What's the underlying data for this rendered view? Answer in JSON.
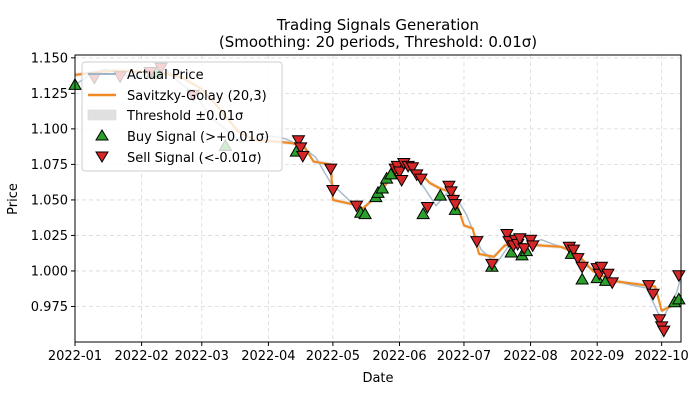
{
  "chart_data": {
    "type": "line",
    "title": "Trading Signals Generation",
    "subtitle": "(Smoothing: 20 periods, Threshold: 0.01σ)",
    "xlabel": "Date",
    "ylabel": "Price",
    "xlim": [
      "2022-01-01",
      "2022-10-10"
    ],
    "ylim": [
      0.95,
      1.152
    ],
    "grid": true,
    "legend_position": "upper-left",
    "x_ticks": [
      "2022-01",
      "2022-02",
      "2022-03",
      "2022-04",
      "2022-05",
      "2022-06",
      "2022-07",
      "2022-08",
      "2022-09",
      "2022-10"
    ],
    "y_ticks": [
      "0.975",
      "1.000",
      "1.025",
      "1.050",
      "1.075",
      "1.100",
      "1.125",
      "1.150"
    ],
    "legend": {
      "actual": "Actual Price",
      "smooth": "Savitzky-Golay (20,3)",
      "threshold": "Threshold ±0.01σ",
      "buy": "Buy Signal (>+0.01σ)",
      "sell": "Sell Signal (<-0.01σ)"
    },
    "colors": {
      "actual": "#9fb6c9",
      "smooth": "#f08a24",
      "threshold": "#e0e0e0",
      "buy": "#2ca02c",
      "sell": "#d62728"
    },
    "series": [
      {
        "name": "Actual Price",
        "points": [
          [
            "2022-01-01",
            1.131
          ],
          [
            "2022-01-08",
            1.138
          ],
          [
            "2022-01-15",
            1.142
          ],
          [
            "2022-01-22",
            1.139
          ],
          [
            "2022-01-29",
            1.135
          ],
          [
            "2022-02-05",
            1.14
          ],
          [
            "2022-02-12",
            1.142
          ],
          [
            "2022-02-19",
            1.132
          ],
          [
            "2022-02-26",
            1.125
          ],
          [
            "2022-03-05",
            1.108
          ],
          [
            "2022-03-12",
            1.1
          ],
          [
            "2022-03-19",
            1.091
          ],
          [
            "2022-03-26",
            1.092
          ],
          [
            "2022-04-02",
            1.095
          ],
          [
            "2022-04-09",
            1.093
          ],
          [
            "2022-04-16",
            1.088
          ],
          [
            "2022-04-23",
            1.08
          ],
          [
            "2022-04-30",
            1.062
          ],
          [
            "2022-05-07",
            1.052
          ],
          [
            "2022-05-14",
            1.042
          ],
          [
            "2022-05-21",
            1.052
          ],
          [
            "2022-05-28",
            1.068
          ],
          [
            "2022-06-04",
            1.074
          ],
          [
            "2022-06-11",
            1.062
          ],
          [
            "2022-06-18",
            1.046
          ],
          [
            "2022-06-25",
            1.058
          ],
          [
            "2022-07-02",
            1.04
          ],
          [
            "2022-07-09",
            1.015
          ],
          [
            "2022-07-16",
            1.005
          ],
          [
            "2022-07-23",
            1.02
          ],
          [
            "2022-07-30",
            1.018
          ],
          [
            "2022-08-06",
            1.022
          ],
          [
            "2022-08-13",
            1.018
          ],
          [
            "2022-08-20",
            1.015
          ],
          [
            "2022-08-27",
            1.003
          ],
          [
            "2022-09-03",
            1.0
          ],
          [
            "2022-09-10",
            0.993
          ],
          [
            "2022-09-17",
            0.99
          ],
          [
            "2022-09-24",
            0.988
          ],
          [
            "2022-10-01",
            0.965
          ],
          [
            "2022-10-08",
            0.985
          ],
          [
            "2022-10-10",
            0.996
          ]
        ]
      },
      {
        "name": "Savitzky-Golay (20,3)",
        "points": [
          [
            "2022-01-01",
            1.138
          ],
          [
            "2022-01-12",
            1.14
          ],
          [
            "2022-01-20",
            1.141
          ],
          [
            "2022-02-01",
            1.14
          ],
          [
            "2022-02-12",
            1.139
          ],
          [
            "2022-02-20",
            1.136
          ],
          [
            "2022-03-01",
            1.128
          ],
          [
            "2022-03-10",
            1.113
          ],
          [
            "2022-03-18",
            1.098
          ],
          [
            "2022-03-26",
            1.092
          ],
          [
            "2022-04-05",
            1.091
          ],
          [
            "2022-04-12",
            1.09
          ],
          [
            "2022-04-18",
            1.087
          ],
          [
            "2022-04-22",
            1.077
          ],
          [
            "2022-04-30",
            1.075
          ],
          [
            "2022-05-01",
            1.05
          ],
          [
            "2022-05-10",
            1.047
          ],
          [
            "2022-05-15",
            1.044
          ],
          [
            "2022-05-20",
            1.051
          ],
          [
            "2022-05-28",
            1.065
          ],
          [
            "2022-06-03",
            1.073
          ],
          [
            "2022-06-10",
            1.07
          ],
          [
            "2022-06-15",
            1.062
          ],
          [
            "2022-06-20",
            1.058
          ],
          [
            "2022-06-26",
            1.055
          ],
          [
            "2022-07-01",
            1.032
          ],
          [
            "2022-07-05",
            1.03
          ],
          [
            "2022-07-08",
            1.012
          ],
          [
            "2022-07-15",
            1.01
          ],
          [
            "2022-07-20",
            1.018
          ],
          [
            "2022-07-28",
            1.019
          ],
          [
            "2022-08-05",
            1.018
          ],
          [
            "2022-08-15",
            1.017
          ],
          [
            "2022-08-22",
            1.013
          ],
          [
            "2022-08-30",
            1.0
          ],
          [
            "2022-09-08",
            0.993
          ],
          [
            "2022-09-18",
            0.991
          ],
          [
            "2022-09-28",
            0.989
          ],
          [
            "2022-10-01",
            0.972
          ],
          [
            "2022-10-05",
            0.975
          ],
          [
            "2022-10-10",
            0.979
          ]
        ]
      },
      {
        "name": "Buy Signal (>+0.01σ)",
        "points": [
          [
            "2022-01-01",
            1.131
          ],
          [
            "2022-02-06",
            1.139
          ],
          [
            "2022-02-08",
            1.14
          ],
          [
            "2022-03-12",
            1.088
          ],
          [
            "2022-04-14",
            1.084
          ],
          [
            "2022-05-14",
            1.041
          ],
          [
            "2022-05-16",
            1.04
          ],
          [
            "2022-05-21",
            1.052
          ],
          [
            "2022-05-22",
            1.055
          ],
          [
            "2022-05-24",
            1.058
          ],
          [
            "2022-05-26",
            1.065
          ],
          [
            "2022-05-28",
            1.068
          ],
          [
            "2022-06-12",
            1.04
          ],
          [
            "2022-06-20",
            1.053
          ],
          [
            "2022-06-27",
            1.043
          ],
          [
            "2022-07-14",
            1.003
          ],
          [
            "2022-07-23",
            1.013
          ],
          [
            "2022-07-28",
            1.011
          ],
          [
            "2022-07-30",
            1.014
          ],
          [
            "2022-08-20",
            1.012
          ],
          [
            "2022-08-25",
            0.994
          ],
          [
            "2022-09-01",
            0.995
          ],
          [
            "2022-09-05",
            0.993
          ],
          [
            "2022-10-07",
            0.978
          ],
          [
            "2022-10-09",
            0.98
          ]
        ]
      },
      {
        "name": "Sell Signal (<-0.01σ)",
        "points": [
          [
            "2022-01-10",
            1.136
          ],
          [
            "2022-01-22",
            1.137
          ],
          [
            "2022-02-05",
            1.14
          ],
          [
            "2022-02-10",
            1.143
          ],
          [
            "2022-02-25",
            1.124
          ],
          [
            "2022-04-15",
            1.092
          ],
          [
            "2022-04-16",
            1.087
          ],
          [
            "2022-04-17",
            1.081
          ],
          [
            "2022-04-30",
            1.072
          ],
          [
            "2022-05-01",
            1.057
          ],
          [
            "2022-05-12",
            1.046
          ],
          [
            "2022-05-30",
            1.072
          ],
          [
            "2022-05-31",
            1.074
          ],
          [
            "2022-06-01",
            1.07
          ],
          [
            "2022-06-02",
            1.064
          ],
          [
            "2022-06-03",
            1.076
          ],
          [
            "2022-06-05",
            1.074
          ],
          [
            "2022-06-07",
            1.073
          ],
          [
            "2022-06-09",
            1.068
          ],
          [
            "2022-06-11",
            1.065
          ],
          [
            "2022-06-14",
            1.045
          ],
          [
            "2022-06-24",
            1.06
          ],
          [
            "2022-06-25",
            1.056
          ],
          [
            "2022-06-26",
            1.05
          ],
          [
            "2022-06-27",
            1.047
          ],
          [
            "2022-07-07",
            1.021
          ],
          [
            "2022-07-14",
            1.005
          ],
          [
            "2022-07-21",
            1.026
          ],
          [
            "2022-07-22",
            1.021
          ],
          [
            "2022-07-24",
            1.018
          ],
          [
            "2022-07-25",
            1.022
          ],
          [
            "2022-07-26",
            1.019
          ],
          [
            "2022-07-27",
            1.023
          ],
          [
            "2022-07-29",
            1.016
          ],
          [
            "2022-08-01",
            1.022
          ],
          [
            "2022-08-02",
            1.018
          ],
          [
            "2022-08-19",
            1.017
          ],
          [
            "2022-08-21",
            1.015
          ],
          [
            "2022-08-23",
            1.009
          ],
          [
            "2022-08-25",
            1.003
          ],
          [
            "2022-09-01",
            1.002
          ],
          [
            "2022-09-02",
            0.998
          ],
          [
            "2022-09-03",
            1.003
          ],
          [
            "2022-09-06",
            0.998
          ],
          [
            "2022-09-08",
            0.992
          ],
          [
            "2022-09-25",
            0.99
          ],
          [
            "2022-09-27",
            0.984
          ],
          [
            "2022-09-30",
            0.966
          ],
          [
            "2022-10-01",
            0.961
          ],
          [
            "2022-10-02",
            0.958
          ],
          [
            "2022-10-09",
            0.997
          ]
        ]
      }
    ]
  }
}
